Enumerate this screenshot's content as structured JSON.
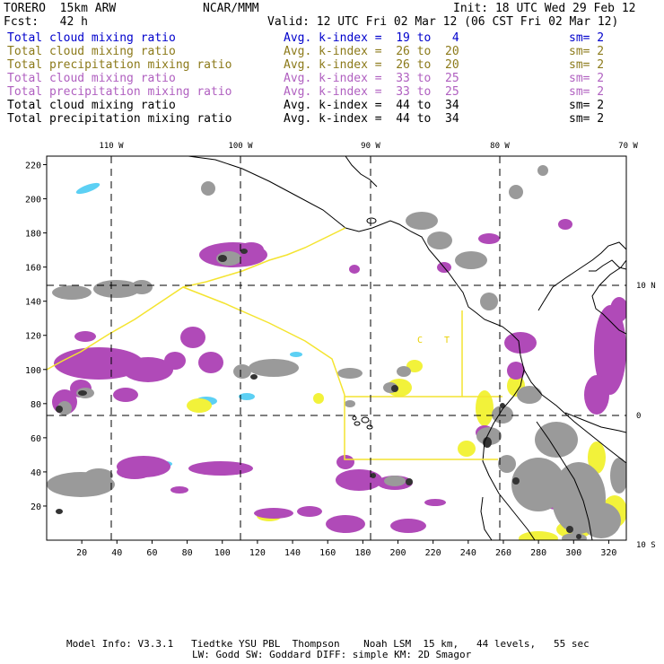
{
  "header": {
    "model": "TORERO  15km ARW",
    "org": "NCAR/MMM",
    "init": "Init: 18 UTC Wed 29 Feb 12",
    "fcst": "Fcst:   42 h",
    "valid": "Valid: 12 UTC Fri 02 Mar 12 (06 CST Fri 02 Mar 12)"
  },
  "fields": [
    {
      "name": "Total cloud mixing ratio",
      "index": "Avg. k-index =  19 to   4",
      "sm": "sm= 2",
      "color": "#0000cc"
    },
    {
      "name": "Total cloud mixing ratio",
      "index": "Avg. k-index =  26 to  20",
      "sm": "sm= 2",
      "color": "#8c7a1a"
    },
    {
      "name": "Total precipitation mixing ratio",
      "index": "Avg. k-index =  26 to  20",
      "sm": "sm= 2",
      "color": "#8c7a1a"
    },
    {
      "name": "Total cloud mixing ratio",
      "index": "Avg. k-index =  33 to  25",
      "sm": "sm= 2",
      "color": "#b060c0"
    },
    {
      "name": "Total precipitation mixing ratio",
      "index": "Avg. k-index =  33 to  25",
      "sm": "sm= 2",
      "color": "#b060c0"
    },
    {
      "name": "Total cloud mixing ratio",
      "index": "Avg. k-index =  44 to  34",
      "sm": "sm= 2",
      "color": "#000000"
    },
    {
      "name": "Total precipitation mixing ratio",
      "index": "Avg. k-index =  44 to  34",
      "sm": "sm= 2",
      "color": "#000000"
    }
  ],
  "map": {
    "lon_labels": [
      "110 W",
      "100 W",
      "90 W",
      "80 W",
      "70 W"
    ],
    "lat_labels": [
      "10 N",
      "0",
      "10 S"
    ],
    "x_ticks": [
      "20",
      "40",
      "60",
      "80",
      "100",
      "120",
      "140",
      "160",
      "180",
      "200",
      "220",
      "240",
      "260",
      "280",
      "300",
      "320"
    ],
    "y_ticks": [
      "220",
      "200",
      "180",
      "160",
      "140",
      "120",
      "100",
      "80",
      "60",
      "40",
      "20"
    ],
    "grid_x_range": [
      0,
      330
    ],
    "grid_y_range": [
      0,
      225
    ],
    "colors": {
      "cloud_light": "#5cd0f4",
      "cloud_mid": "#f2f23a",
      "cloud_heavy": "#b04ab8",
      "cloud_grey": "#9a9a9a",
      "coast": "#000000",
      "domain_outline": "#f4e430"
    },
    "markers": [
      "C",
      "T"
    ]
  },
  "footer": {
    "line1": "Model Info: V3.3.1   Tiedtke YSU PBL  Thompson    Noah LSM  15 km,   44 levels,   55 sec",
    "line2": "LW: Godd SW: Goddard DIFF: simple KM: 2D Smagor"
  }
}
